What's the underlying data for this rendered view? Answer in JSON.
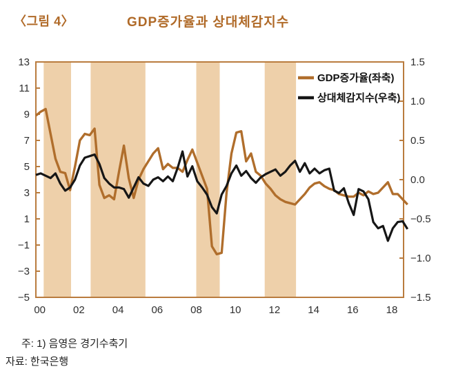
{
  "header": {
    "figure_label": "〈그림 4〉",
    "title": "GDP증가율과 상대체감지수"
  },
  "footnotes": {
    "note": "주: 1) 음영은 경기수축기",
    "source": "자료: 한국은행"
  },
  "colors": {
    "title_text": "#b06a28",
    "gdp_line": "#b06e2c",
    "sentiment_line": "#161616",
    "band_fill": "#eed0aa",
    "plot_border": "#b97b3d",
    "tick_mark": "#b97b3d",
    "axis_text": "#2e2e2e"
  },
  "chart_data": {
    "type": "line",
    "title": "GDP증가율과 상대체감지수",
    "x_start": 1999.8,
    "x_step": 0.25,
    "x_domain": [
      1999.8,
      2018.6
    ],
    "grid": false,
    "left_axis": {
      "range": [
        -5,
        13
      ],
      "ticks": [
        {
          "label": "13",
          "value": 13
        },
        {
          "label": "11",
          "value": 11
        },
        {
          "label": "9",
          "value": 9
        },
        {
          "label": "7",
          "value": 7
        },
        {
          "label": "5",
          "value": 5
        },
        {
          "label": "3",
          "value": 3
        },
        {
          "label": "1",
          "value": 1
        },
        {
          "label": "−1",
          "value": -1
        },
        {
          "label": "−3",
          "value": -3
        },
        {
          "label": "−5",
          "value": -5
        }
      ]
    },
    "right_axis": {
      "range": [
        -1.5,
        1.5
      ],
      "ticks": [
        {
          "label": "1.5",
          "value": 1.5
        },
        {
          "label": "1.0",
          "value": 1.0
        },
        {
          "label": "0.5",
          "value": 0.5
        },
        {
          "label": "0.0",
          "value": 0.0
        },
        {
          "label": "−0.5",
          "value": -0.5
        },
        {
          "label": "−1.0",
          "value": -1.0
        },
        {
          "label": "−1.5",
          "value": -1.5
        }
      ]
    },
    "x_ticks": [
      {
        "label": "00",
        "value": 2000
      },
      {
        "label": "02",
        "value": 2002
      },
      {
        "label": "04",
        "value": 2004
      },
      {
        "label": "06",
        "value": 2006
      },
      {
        "label": "08",
        "value": 2008
      },
      {
        "label": "10",
        "value": 2010
      },
      {
        "label": "12",
        "value": 2012
      },
      {
        "label": "14",
        "value": 2014
      },
      {
        "label": "16",
        "value": 2016
      },
      {
        "label": "18",
        "value": 2018
      }
    ],
    "shaded_bands": {
      "meaning": "경기수축기",
      "ranges": [
        [
          2000.2,
          2001.6
        ],
        [
          2002.6,
          2005.4
        ],
        [
          2008.0,
          2009.2
        ],
        [
          2011.5,
          2013.1
        ]
      ]
    },
    "legend": {
      "position": "top-right",
      "items": [
        "GDP증가율(좌축)",
        "상대체감지수(우축)"
      ]
    },
    "series": [
      {
        "name": "GDP증가율(좌축)",
        "axis": "left",
        "color": "#b06e2c",
        "values": [
          8.9,
          9.2,
          9.4,
          7.5,
          5.6,
          4.6,
          4.5,
          3.2,
          5.0,
          7.0,
          7.5,
          7.4,
          7.9,
          3.6,
          2.6,
          2.8,
          2.5,
          4.6,
          6.6,
          4.1,
          2.6,
          4.0,
          4.8,
          5.4,
          6.0,
          6.4,
          4.8,
          5.2,
          4.9,
          4.9,
          4.6,
          5.5,
          6.3,
          5.3,
          4.3,
          3.3,
          -1.1,
          -1.7,
          -1.6,
          3.0,
          6.0,
          7.6,
          7.7,
          5.4,
          6.0,
          4.6,
          4.3,
          3.7,
          3.3,
          2.8,
          2.5,
          2.3,
          2.2,
          2.1,
          2.5,
          2.9,
          3.4,
          3.7,
          3.8,
          3.5,
          3.3,
          3.2,
          2.9,
          2.8,
          2.7,
          2.7,
          3.0,
          2.8,
          3.1,
          2.9,
          3.0,
          3.4,
          3.8,
          2.9,
          2.9,
          2.5,
          2.1
        ]
      },
      {
        "name": "상대체감지수(우축)",
        "axis": "right",
        "color": "#161616",
        "values": [
          0.06,
          0.08,
          0.05,
          0.02,
          0.08,
          -0.05,
          -0.14,
          -0.1,
          0.0,
          0.18,
          0.28,
          0.3,
          0.32,
          0.2,
          0.02,
          -0.05,
          -0.1,
          -0.1,
          -0.12,
          -0.23,
          -0.1,
          0.03,
          -0.05,
          -0.08,
          0.0,
          0.03,
          -0.02,
          0.04,
          -0.02,
          0.15,
          0.36,
          0.04,
          0.17,
          -0.02,
          -0.1,
          -0.19,
          -0.35,
          -0.43,
          -0.19,
          -0.08,
          0.08,
          0.18,
          0.05,
          0.11,
          0.02,
          -0.04,
          0.03,
          0.07,
          0.1,
          0.13,
          0.05,
          0.1,
          0.18,
          0.24,
          0.1,
          0.21,
          0.08,
          0.14,
          0.08,
          0.12,
          0.14,
          -0.14,
          -0.17,
          -0.11,
          -0.3,
          -0.45,
          -0.12,
          -0.15,
          -0.25,
          -0.54,
          -0.62,
          -0.59,
          -0.78,
          -0.62,
          -0.54,
          -0.53,
          -0.63
        ]
      }
    ]
  }
}
